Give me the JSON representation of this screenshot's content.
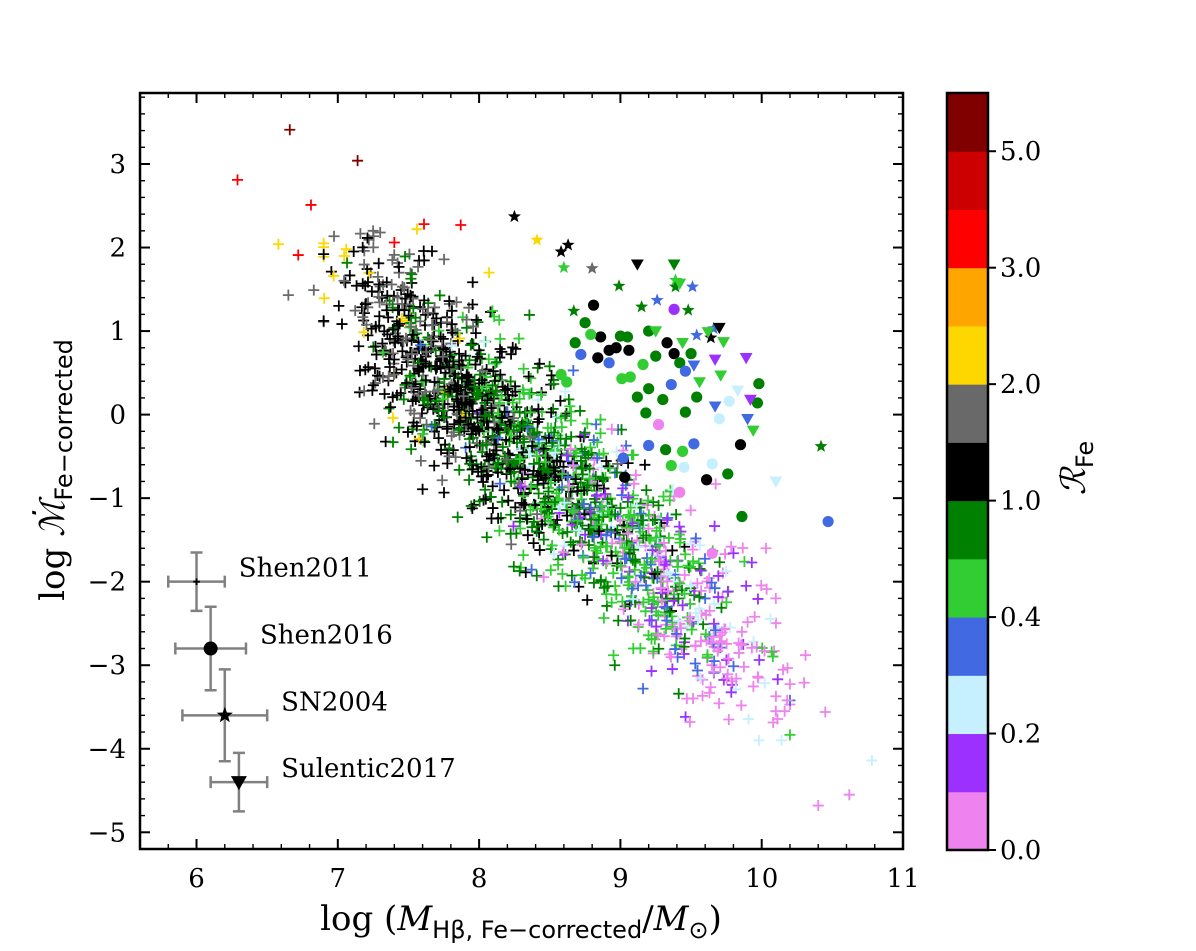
{
  "chart_data": {
    "type": "scatter",
    "title": "",
    "xlabel": {
      "prefix": "log (",
      "var": "M",
      "sub": "Hβ, Fe−corrected",
      "mid": "/",
      "var2": "M",
      "sub2": "⊙",
      "suffix": ")"
    },
    "ylabel": {
      "prefix": "log ",
      "var": "ℳ̇",
      "sub": "Fe−corrected"
    },
    "xlim": [
      5.6,
      11.0
    ],
    "ylim": [
      -5.2,
      3.85
    ],
    "xticks": [
      "6",
      "7",
      "8",
      "9",
      "10",
      "11"
    ],
    "yticks": [
      "3",
      "2",
      "1",
      "0",
      "−1",
      "−2",
      "−3",
      "−4",
      "−5"
    ],
    "xtick_values": [
      6,
      7,
      8,
      9,
      10,
      11
    ],
    "ytick_values": [
      3,
      2,
      1,
      0,
      -1,
      -2,
      -3,
      -4,
      -5
    ],
    "colorbar": {
      "label": "ℛ",
      "label_sub": "Fe",
      "range": [
        0.0,
        5.5
      ],
      "tick_labels": [
        "5.0",
        "3.0",
        "2.0",
        "1.0",
        "0.4",
        "0.2",
        "0.0"
      ],
      "tick_values": [
        5.0,
        3.0,
        2.0,
        1.0,
        0.4,
        0.2,
        0.0
      ],
      "bins": [
        {
          "from": "0.0",
          "to": "0.1",
          "color": "#ee82ee"
        },
        {
          "from": "0.1",
          "to": "0.2",
          "color": "#9b30ff"
        },
        {
          "from": "0.2",
          "to": "0.3",
          "color": "#c6efff"
        },
        {
          "from": "0.3",
          "to": "0.4",
          "color": "#4169e1"
        },
        {
          "from": "0.4",
          "to": "0.7",
          "color": "#32cd32"
        },
        {
          "from": "0.7",
          "to": "1.0",
          "color": "#008000"
        },
        {
          "from": "1.0",
          "to": "1.5",
          "color": "#000000"
        },
        {
          "from": "1.5",
          "to": "2.0",
          "color": "#696969"
        },
        {
          "from": "2.0",
          "to": "2.5",
          "color": "#ffd700"
        },
        {
          "from": "2.5",
          "to": "3.0",
          "color": "#ffa500"
        },
        {
          "from": "3.0",
          "to": "4.0",
          "color": "#ff0000"
        },
        {
          "from": "4.0",
          "to": "5.0",
          "color": "#cc0000"
        },
        {
          "from": "5.0",
          "to": "5.5",
          "color": "#800000"
        }
      ]
    },
    "legend": {
      "placement": "bottom-left",
      "entries": [
        {
          "label": "Shen2011",
          "marker": "plus",
          "x": 6.0,
          "y": -2.0,
          "xerr": 0.2,
          "yerr": 0.35
        },
        {
          "label": "Shen2016",
          "marker": "circle",
          "x": 6.1,
          "y": -2.8,
          "xerr": 0.25,
          "yerr": 0.5
        },
        {
          "label": "SN2004",
          "marker": "star",
          "x": 6.2,
          "y": -3.6,
          "xerr": 0.3,
          "yerr": 0.55
        },
        {
          "label": "Sulentic2017",
          "marker": "triangle-down",
          "x": 6.3,
          "y": -4.4,
          "xerr": 0.2,
          "yerr": 0.35
        }
      ]
    },
    "series": [
      {
        "name": "Shen2011",
        "marker": "plus",
        "generated_cloud": {
          "count": 1700,
          "seed": 7,
          "x_range": [
            6.9,
            10.2
          ],
          "slope": -1.55,
          "intercept": 12.45,
          "scatter": 0.55
        },
        "points": [
          {
            "x": 6.66,
            "y": 3.41,
            "c": "#800000"
          },
          {
            "x": 7.14,
            "y": 3.04,
            "c": "#800000"
          },
          {
            "x": 6.29,
            "y": 2.81,
            "c": "#ff0000"
          },
          {
            "x": 6.81,
            "y": 2.51,
            "c": "#ff0000"
          },
          {
            "x": 6.72,
            "y": 1.91,
            "c": "#ff0000"
          },
          {
            "x": 7.61,
            "y": 2.28,
            "c": "#ff0000"
          },
          {
            "x": 7.87,
            "y": 2.27,
            "c": "#ff0000"
          },
          {
            "x": 7.4,
            "y": 2.06,
            "c": "#ff0000"
          },
          {
            "x": 6.58,
            "y": 2.04,
            "c": "#ffd700"
          },
          {
            "x": 6.9,
            "y": 2.05,
            "c": "#ffd700"
          },
          {
            "x": 7.56,
            "y": 2.22,
            "c": "#ffd700"
          },
          {
            "x": 7.3,
            "y": 2.18,
            "c": "#696969"
          },
          {
            "x": 6.65,
            "y": 1.43,
            "c": "#696969"
          },
          {
            "x": 6.83,
            "y": 1.49,
            "c": "#696969"
          },
          {
            "x": 7.25,
            "y": 2.2,
            "c": "#696969"
          },
          {
            "x": 7.06,
            "y": 1.98,
            "c": "#ffd700"
          },
          {
            "x": 8.07,
            "y": 1.7,
            "c": "#ffd700"
          },
          {
            "x": 8.98,
            "y": -0.59,
            "c": "#696969"
          },
          {
            "x": 9.02,
            "y": -0.43,
            "c": "#ee82ee"
          },
          {
            "x": 9.8,
            "y": -1.66,
            "c": "#9b30ff"
          },
          {
            "x": 9.93,
            "y": -1.77,
            "c": "#9b30ff"
          },
          {
            "x": 10.31,
            "y": -2.88,
            "c": "#ee82ee"
          },
          {
            "x": 10.3,
            "y": -3.21,
            "c": "#ee82ee"
          },
          {
            "x": 10.45,
            "y": -3.56,
            "c": "#ee82ee"
          },
          {
            "x": 10.18,
            "y": -3.42,
            "c": "#ee82ee"
          },
          {
            "x": 10.1,
            "y": -3.55,
            "c": "#ee82ee"
          },
          {
            "x": 9.98,
            "y": -3.9,
            "c": "#c6efff"
          },
          {
            "x": 10.14,
            "y": -3.9,
            "c": "#c6efff"
          },
          {
            "x": 10.78,
            "y": -4.14,
            "c": "#c6efff"
          },
          {
            "x": 10.62,
            "y": -4.55,
            "c": "#ee82ee"
          },
          {
            "x": 10.4,
            "y": -4.68,
            "c": "#ee82ee"
          },
          {
            "x": 9.16,
            "y": -3.28,
            "c": "#4169e1"
          },
          {
            "x": 9.82,
            "y": -3.16,
            "c": "#ee82ee"
          },
          {
            "x": 9.66,
            "y": -3.08,
            "c": "#ee82ee"
          },
          {
            "x": 9.22,
            "y": -3.07,
            "c": "#9b30ff"
          },
          {
            "x": 8.96,
            "y": -3.0,
            "c": "#008000"
          },
          {
            "x": 9.47,
            "y": -3.4,
            "c": "#ee82ee"
          },
          {
            "x": 9.63,
            "y": -3.33,
            "c": "#ee82ee"
          },
          {
            "x": 10.02,
            "y": -2.83,
            "c": "#ee82ee"
          },
          {
            "x": 9.95,
            "y": -2.42,
            "c": "#ee82ee"
          },
          {
            "x": 9.86,
            "y": -2.6,
            "c": "#ee82ee"
          },
          {
            "x": 10.03,
            "y": -1.6,
            "c": "#ee82ee"
          },
          {
            "x": 10.1,
            "y": -2.2,
            "c": "#ee82ee"
          },
          {
            "x": 9.89,
            "y": -2.05,
            "c": "#9b30ff"
          }
        ]
      },
      {
        "name": "Shen2016",
        "marker": "circle",
        "points": [
          {
            "x": 8.81,
            "y": 1.31,
            "c": "#000000"
          },
          {
            "x": 8.75,
            "y": 1.1,
            "c": "#008000"
          },
          {
            "x": 9.0,
            "y": 0.94,
            "c": "#008000"
          },
          {
            "x": 8.97,
            "y": 0.8,
            "c": "#000000"
          },
          {
            "x": 8.86,
            "y": 0.93,
            "c": "#000000"
          },
          {
            "x": 8.92,
            "y": 0.77,
            "c": "#000000"
          },
          {
            "x": 9.06,
            "y": 0.77,
            "c": "#000000"
          },
          {
            "x": 8.84,
            "y": 0.68,
            "c": "#000000"
          },
          {
            "x": 8.79,
            "y": 0.96,
            "c": "#32cd32"
          },
          {
            "x": 8.68,
            "y": 0.86,
            "c": "#008000"
          },
          {
            "x": 9.05,
            "y": 0.93,
            "c": "#008000"
          },
          {
            "x": 8.72,
            "y": 0.72,
            "c": "#4169e1"
          },
          {
            "x": 9.33,
            "y": 0.86,
            "c": "#000000"
          },
          {
            "x": 9.38,
            "y": 0.73,
            "c": "#000000"
          },
          {
            "x": 9.2,
            "y": 1.0,
            "c": "#008000"
          },
          {
            "x": 9.25,
            "y": 0.7,
            "c": "#008000"
          },
          {
            "x": 9.16,
            "y": 0.6,
            "c": "#32cd32"
          },
          {
            "x": 9.42,
            "y": 0.62,
            "c": "#008000"
          },
          {
            "x": 9.5,
            "y": 0.73,
            "c": "#008000"
          },
          {
            "x": 9.38,
            "y": 1.26,
            "c": "#9b30ff"
          },
          {
            "x": 9.46,
            "y": 0.52,
            "c": "#4169e1"
          },
          {
            "x": 9.07,
            "y": 0.45,
            "c": "#32cd32"
          },
          {
            "x": 9.01,
            "y": 0.43,
            "c": "#32cd32"
          },
          {
            "x": 9.2,
            "y": 0.31,
            "c": "#008000"
          },
          {
            "x": 9.36,
            "y": 0.36,
            "c": "#4169e1"
          },
          {
            "x": 9.3,
            "y": 0.18,
            "c": "#008000"
          },
          {
            "x": 9.12,
            "y": 0.21,
            "c": "#008000"
          },
          {
            "x": 9.18,
            "y": 0.02,
            "c": "#008000"
          },
          {
            "x": 9.46,
            "y": 0.03,
            "c": "#008000"
          },
          {
            "x": 9.27,
            "y": -0.12,
            "c": "#ee82ee"
          },
          {
            "x": 9.54,
            "y": 0.21,
            "c": "#008000"
          },
          {
            "x": 9.77,
            "y": 0.16,
            "c": "#c6efff"
          },
          {
            "x": 9.98,
            "y": 0.37,
            "c": "#008000"
          },
          {
            "x": 9.97,
            "y": 0.14,
            "c": "#008000"
          },
          {
            "x": 9.7,
            "y": -0.05,
            "c": "#c6efff"
          },
          {
            "x": 9.85,
            "y": -0.36,
            "c": "#000000"
          },
          {
            "x": 9.52,
            "y": -0.35,
            "c": "#4169e1"
          },
          {
            "x": 9.44,
            "y": -0.44,
            "c": "#32cd32"
          },
          {
            "x": 9.32,
            "y": -0.42,
            "c": "#008000"
          },
          {
            "x": 9.2,
            "y": -0.37,
            "c": "#4169e1"
          },
          {
            "x": 9.36,
            "y": -0.61,
            "c": "#32cd32"
          },
          {
            "x": 9.45,
            "y": -0.63,
            "c": "#c6efff"
          },
          {
            "x": 9.65,
            "y": -0.59,
            "c": "#c6efff"
          },
          {
            "x": 9.76,
            "y": -0.71,
            "c": "#008000"
          },
          {
            "x": 9.61,
            "y": -0.78,
            "c": "#000000"
          },
          {
            "x": 9.03,
            "y": -0.75,
            "c": "#000000"
          },
          {
            "x": 9.02,
            "y": -0.52,
            "c": "#4169e1"
          },
          {
            "x": 9.86,
            "y": -1.22,
            "c": "#008000"
          },
          {
            "x": 10.47,
            "y": -1.28,
            "c": "#4169e1"
          },
          {
            "x": 9.65,
            "y": -1.66,
            "c": "#ee82ee"
          },
          {
            "x": 9.42,
            "y": -0.93,
            "c": "#ee82ee"
          },
          {
            "x": 8.92,
            "y": 0.62,
            "c": "#4169e1"
          },
          {
            "x": 8.58,
            "y": 0.48,
            "c": "#32cd32"
          },
          {
            "x": 8.62,
            "y": 0.39,
            "c": "#32cd32"
          }
        ]
      },
      {
        "name": "SN2004",
        "marker": "star",
        "points": [
          {
            "x": 8.25,
            "y": 2.37,
            "c": "#000000"
          },
          {
            "x": 8.63,
            "y": 2.03,
            "c": "#000000"
          },
          {
            "x": 8.58,
            "y": 1.95,
            "c": "#000000"
          },
          {
            "x": 8.41,
            "y": 2.09,
            "c": "#ffd700"
          },
          {
            "x": 8.6,
            "y": 1.76,
            "c": "#32cd32"
          },
          {
            "x": 8.8,
            "y": 1.75,
            "c": "#696969"
          },
          {
            "x": 8.99,
            "y": 1.54,
            "c": "#008000"
          },
          {
            "x": 9.39,
            "y": 1.61,
            "c": "#32cd32"
          },
          {
            "x": 9.39,
            "y": 1.53,
            "c": "#008000"
          },
          {
            "x": 9.26,
            "y": 1.37,
            "c": "#4169e1"
          },
          {
            "x": 9.51,
            "y": 1.53,
            "c": "#4169e1"
          },
          {
            "x": 9.48,
            "y": 1.25,
            "c": "#008000"
          },
          {
            "x": 9.15,
            "y": 1.29,
            "c": "#008000"
          },
          {
            "x": 9.66,
            "y": 1.03,
            "c": "#4169e1"
          },
          {
            "x": 9.64,
            "y": 0.92,
            "c": "#000000"
          },
          {
            "x": 9.54,
            "y": 0.95,
            "c": "#4169e1"
          },
          {
            "x": 10.42,
            "y": -0.38,
            "c": "#008000"
          },
          {
            "x": 8.67,
            "y": 1.24,
            "c": "#008000"
          }
        ]
      },
      {
        "name": "Sulentic2017",
        "marker": "triangle-down",
        "points": [
          {
            "x": 9.12,
            "y": 1.8,
            "c": "#000000"
          },
          {
            "x": 9.38,
            "y": 1.8,
            "c": "#008000"
          },
          {
            "x": 9.42,
            "y": 1.57,
            "c": "#32cd32"
          },
          {
            "x": 9.7,
            "y": 1.04,
            "c": "#000000"
          },
          {
            "x": 9.62,
            "y": 0.99,
            "c": "#32cd32"
          },
          {
            "x": 9.73,
            "y": 0.87,
            "c": "#32cd32"
          },
          {
            "x": 9.67,
            "y": 0.66,
            "c": "#9b30ff"
          },
          {
            "x": 9.89,
            "y": 0.68,
            "c": "#9b30ff"
          },
          {
            "x": 9.52,
            "y": 0.59,
            "c": "#4169e1"
          },
          {
            "x": 9.71,
            "y": 0.47,
            "c": "#32cd32"
          },
          {
            "x": 9.56,
            "y": 0.39,
            "c": "#32cd32"
          },
          {
            "x": 9.83,
            "y": 0.29,
            "c": "#c6efff"
          },
          {
            "x": 9.92,
            "y": 0.18,
            "c": "#9b30ff"
          },
          {
            "x": 9.67,
            "y": 0.1,
            "c": "#4169e1"
          },
          {
            "x": 9.9,
            "y": -0.05,
            "c": "#4169e1"
          },
          {
            "x": 9.94,
            "y": -0.19,
            "c": "#32cd32"
          },
          {
            "x": 10.1,
            "y": -0.8,
            "c": "#c6efff"
          },
          {
            "x": 9.25,
            "y": 1.0,
            "c": "#32cd32"
          },
          {
            "x": 9.44,
            "y": 0.86,
            "c": "#32cd32"
          }
        ]
      }
    ]
  }
}
